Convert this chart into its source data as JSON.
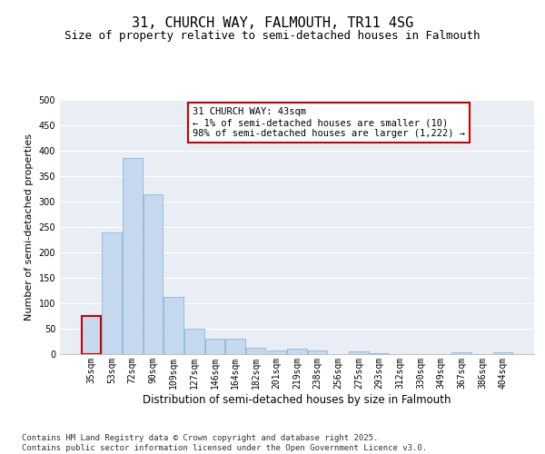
{
  "title": "31, CHURCH WAY, FALMOUTH, TR11 4SG",
  "subtitle": "Size of property relative to semi-detached houses in Falmouth",
  "xlabel": "Distribution of semi-detached houses by size in Falmouth",
  "ylabel": "Number of semi-detached properties",
  "categories": [
    "35sqm",
    "53sqm",
    "72sqm",
    "90sqm",
    "109sqm",
    "127sqm",
    "146sqm",
    "164sqm",
    "182sqm",
    "201sqm",
    "219sqm",
    "238sqm",
    "256sqm",
    "275sqm",
    "293sqm",
    "312sqm",
    "330sqm",
    "349sqm",
    "367sqm",
    "386sqm",
    "404sqm"
  ],
  "values": [
    75,
    240,
    385,
    315,
    113,
    50,
    30,
    30,
    13,
    8,
    10,
    8,
    0,
    5,
    2,
    0,
    0,
    0,
    3,
    0,
    3
  ],
  "bar_color": "#c5d8ed",
  "bar_edge_color": "#7bafd4",
  "highlight_bar_index": 0,
  "highlight_bar_edge_color": "#cc0000",
  "annotation_text": "31 CHURCH WAY: 43sqm\n← 1% of semi-detached houses are smaller (10)\n98% of semi-detached houses are larger (1,222) →",
  "annotation_box_color": "white",
  "annotation_box_edge_color": "#cc0000",
  "ylim": [
    0,
    500
  ],
  "yticks": [
    0,
    50,
    100,
    150,
    200,
    250,
    300,
    350,
    400,
    450,
    500
  ],
  "background_color": "#e8eef4",
  "footer_line1": "Contains HM Land Registry data © Crown copyright and database right 2025.",
  "footer_line2": "Contains public sector information licensed under the Open Government Licence v3.0.",
  "title_fontsize": 11,
  "subtitle_fontsize": 9,
  "xlabel_fontsize": 8.5,
  "ylabel_fontsize": 8,
  "tick_fontsize": 7,
  "annotation_fontsize": 7.5,
  "footer_fontsize": 6.5
}
